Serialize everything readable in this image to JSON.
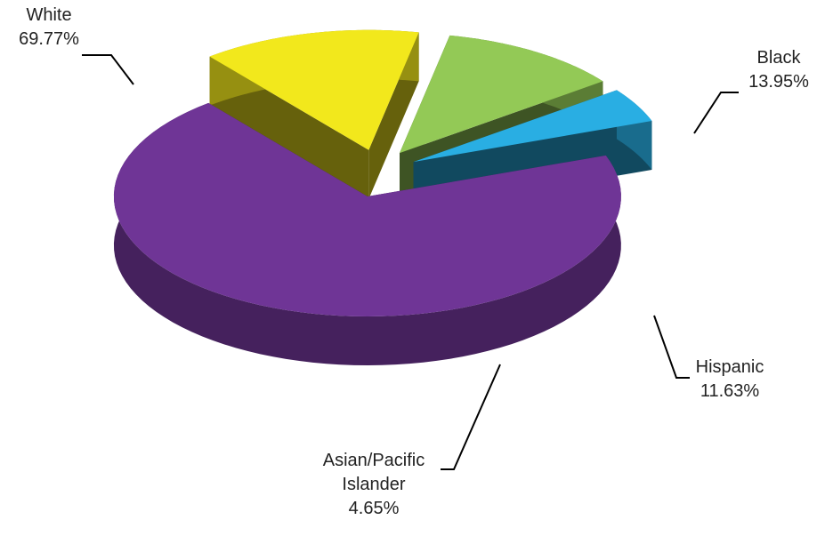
{
  "chart_data": {
    "type": "pie",
    "categories": [
      "White",
      "Black",
      "Hispanic",
      "Asian/Pacific Islander"
    ],
    "values": [
      69.77,
      13.95,
      11.63,
      4.65
    ],
    "value_labels": [
      "69.77%",
      "13.95%",
      "11.63%",
      "4.65%"
    ],
    "colors": [
      "#6f3596",
      "#f2e81c",
      "#93c956",
      "#29aee3"
    ]
  }
}
